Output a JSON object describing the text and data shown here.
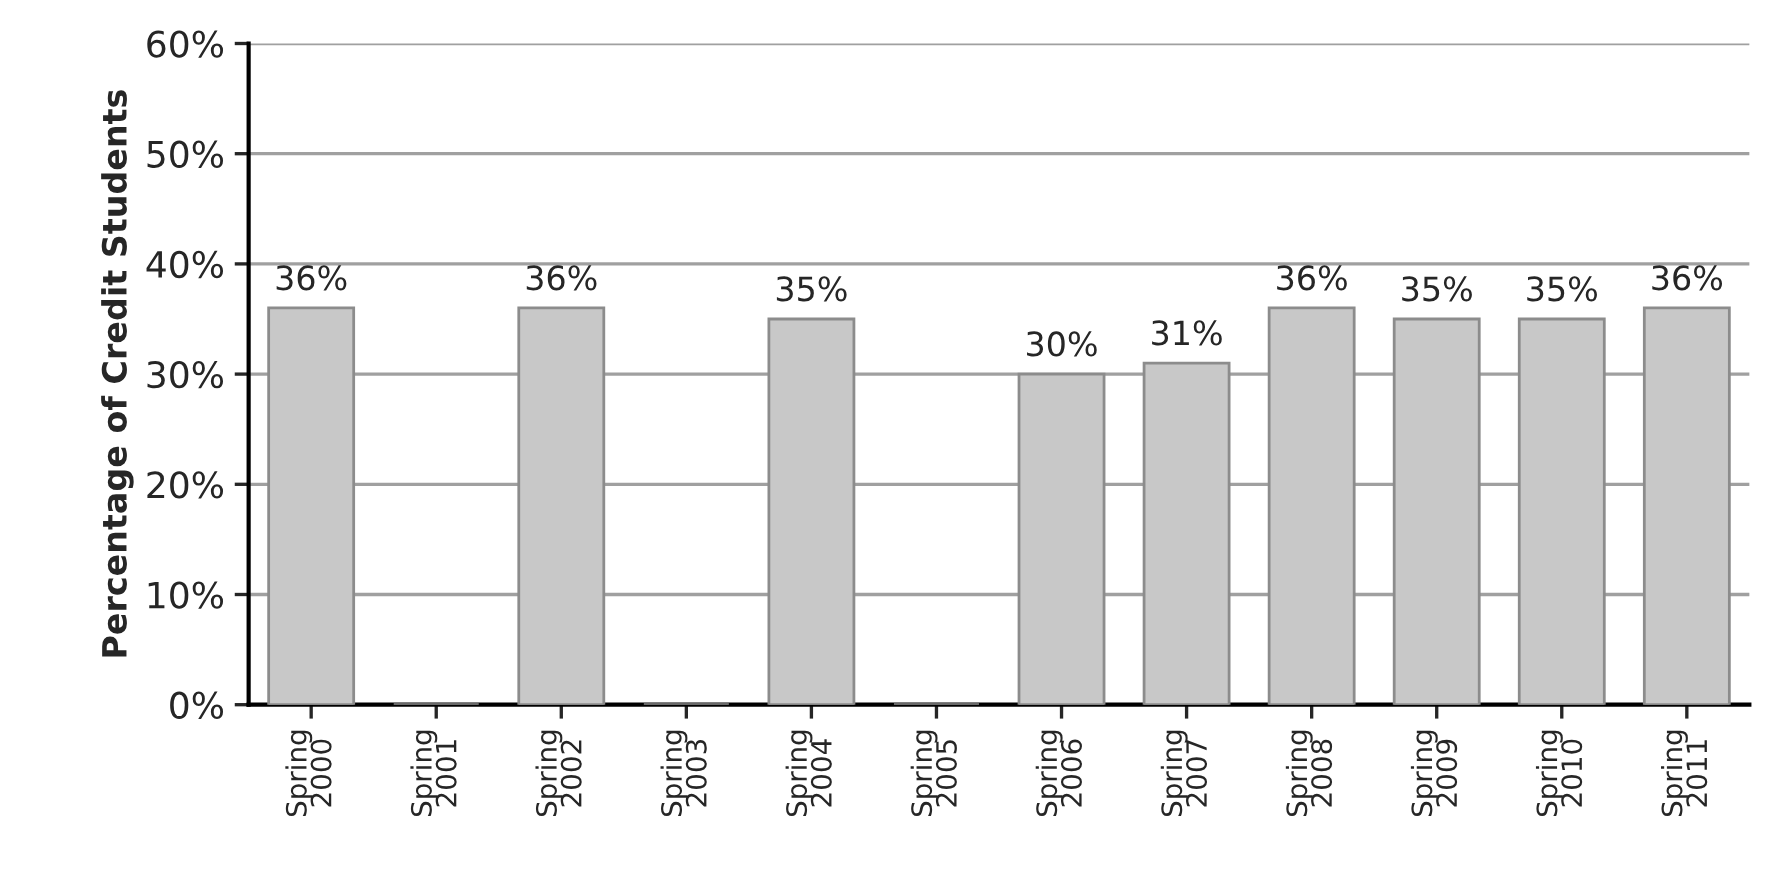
{
  "chart_data": {
    "type": "bar",
    "ylabel": "Percentage of Credit Students",
    "categories": [
      "Spring\n2000",
      "Spring\n2001",
      "Spring\n2002",
      "Spring\n2003",
      "Spring\n2004",
      "Spring\n2005",
      "Spring\n2006",
      "Spring\n2007",
      "Spring\n2008",
      "Spring\n2009",
      "Spring\n2010",
      "Spring\n2011"
    ],
    "values": [
      36,
      null,
      36,
      null,
      35,
      null,
      30,
      31,
      36,
      35,
      35,
      36
    ],
    "value_labels": [
      "36%",
      null,
      "36%",
      null,
      "35%",
      null,
      "30%",
      "31%",
      "36%",
      "35%",
      "35%",
      "36%"
    ],
    "color": "#c8c8c8",
    "ylim": [
      0,
      60
    ],
    "yticks": [
      {
        "value": 0,
        "label": "0%"
      },
      {
        "value": 10,
        "label": "10%"
      },
      {
        "value": 20,
        "label": "20%"
      },
      {
        "value": 30,
        "label": "30%"
      },
      {
        "value": 40,
        "label": "40%"
      },
      {
        "value": 50,
        "label": "50%"
      },
      {
        "value": 60,
        "label": "60%"
      }
    ],
    "grid": "y"
  }
}
